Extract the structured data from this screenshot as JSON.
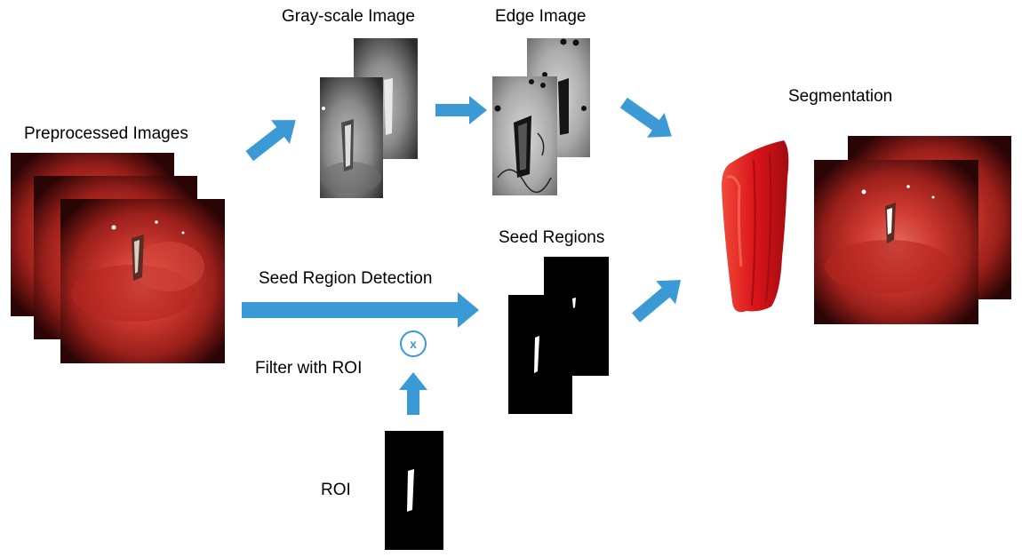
{
  "labels": {
    "preprocessed": "Preprocessed Images",
    "grayscale": "Gray-scale Image",
    "edge": "Edge Image",
    "segmentation": "Segmentation",
    "seed_regions": "Seed Regions",
    "seed_detection": "Seed Region Detection",
    "filter": "Filter with ROI",
    "roi": "ROI",
    "multiply_symbol": "x"
  },
  "colors": {
    "arrow": "#3b9ad6",
    "tissue": "#c0302a",
    "segment_3d": "#e11b1b"
  }
}
